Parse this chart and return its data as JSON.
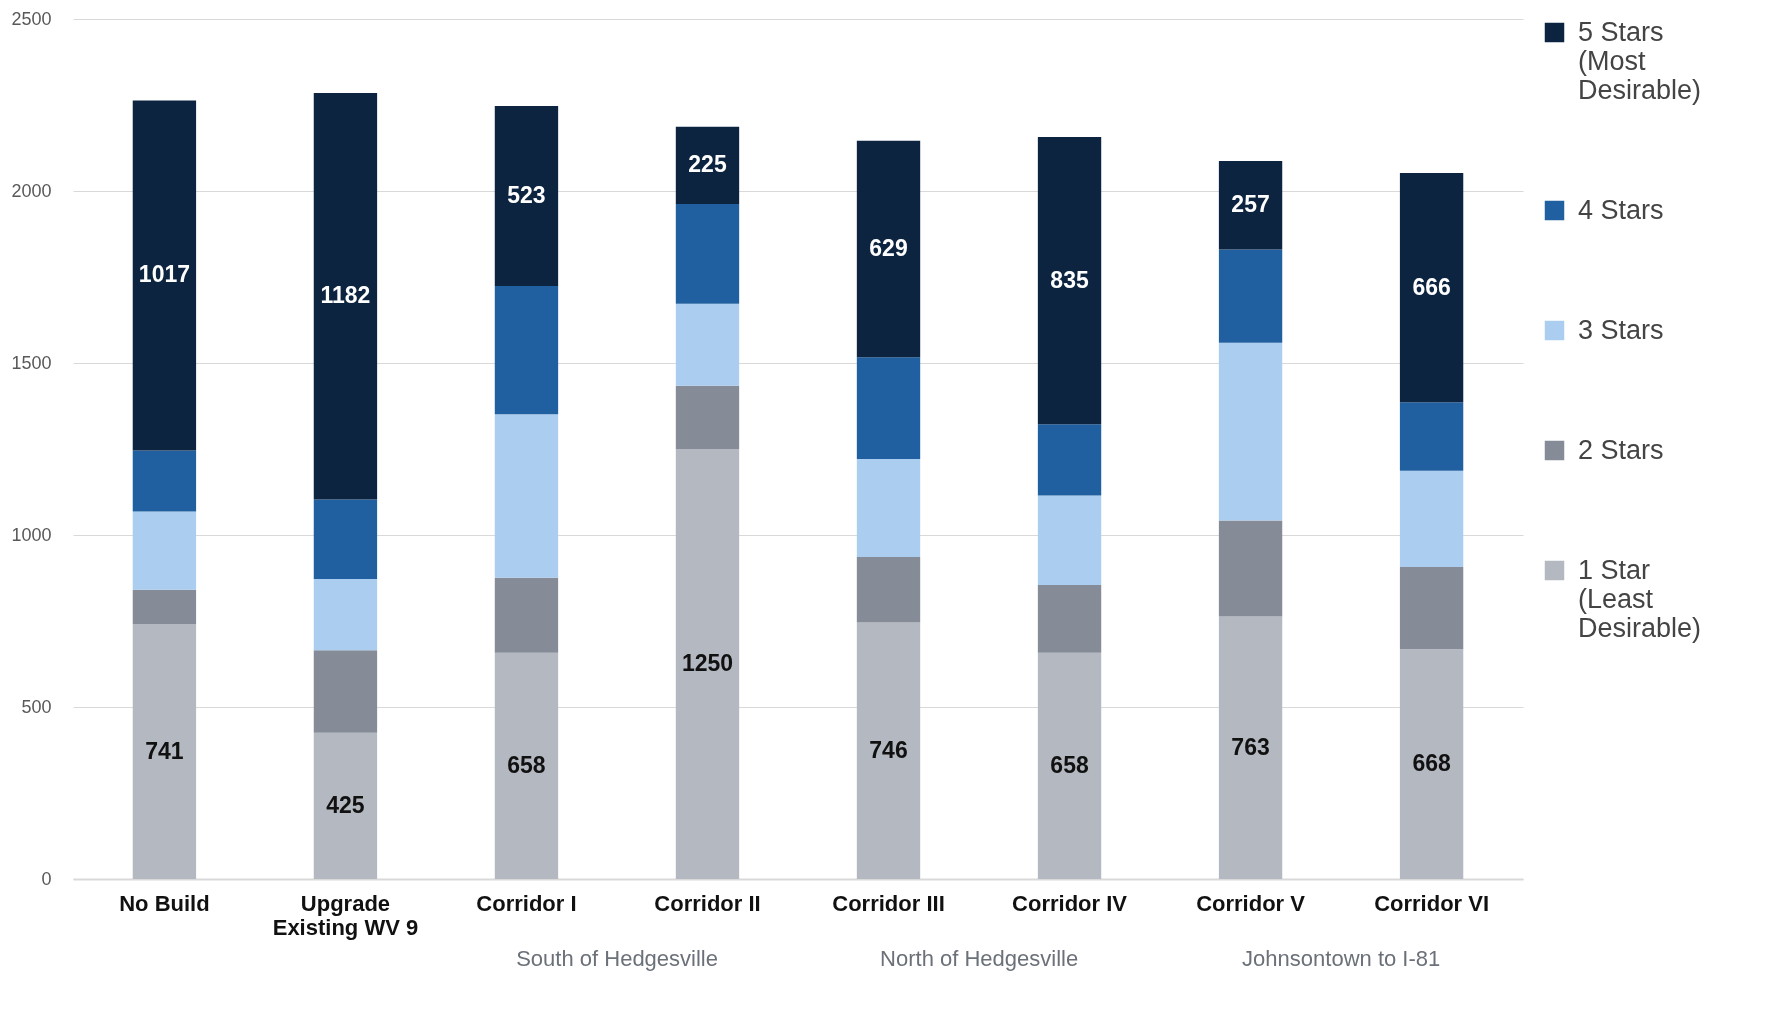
{
  "chart_data": {
    "type": "bar",
    "stacked": true,
    "categories": [
      "No Build",
      "Upgrade Existing WV 9",
      "Corridor I",
      "Corridor II",
      "Corridor III",
      "Corridor IV",
      "Corridor V",
      "Corridor VI"
    ],
    "series": [
      {
        "name": "1 Star (Least Desirable)",
        "color": "#b4b8c1",
        "values": [
          741,
          425,
          658,
          1250,
          746,
          658,
          763,
          668
        ],
        "value_labels": [
          "741",
          "425",
          "658",
          "1250",
          "746",
          "658",
          "763",
          "668"
        ]
      },
      {
        "name": "2 Stars",
        "color": "#858b97",
        "values": [
          100,
          240,
          218,
          184,
          190,
          197,
          279,
          239
        ]
      },
      {
        "name": "3 Stars",
        "color": "#abcdef",
        "values": [
          227,
          207,
          475,
          238,
          285,
          260,
          517,
          280
        ]
      },
      {
        "name": "4 Stars",
        "color": "#2060a0",
        "values": [
          178,
          231,
          373,
          290,
          296,
          207,
          271,
          199
        ]
      },
      {
        "name": "5 Stars (Most Desirable)",
        "color": "#0c2440",
        "values": [
          1017,
          1182,
          523,
          225,
          629,
          835,
          257,
          666
        ],
        "value_labels": [
          "1017",
          "1182",
          "523",
          "225",
          "629",
          "835",
          "257",
          "666"
        ]
      }
    ],
    "ylim": [
      0,
      2500
    ],
    "yticks": [
      0,
      500,
      1000,
      1500,
      2000,
      2500
    ],
    "grid": "y",
    "legend": "right",
    "annotations": [
      "South of Hedgesville",
      "North of Hedgesville",
      "Johnsontown to I-81"
    ]
  }
}
